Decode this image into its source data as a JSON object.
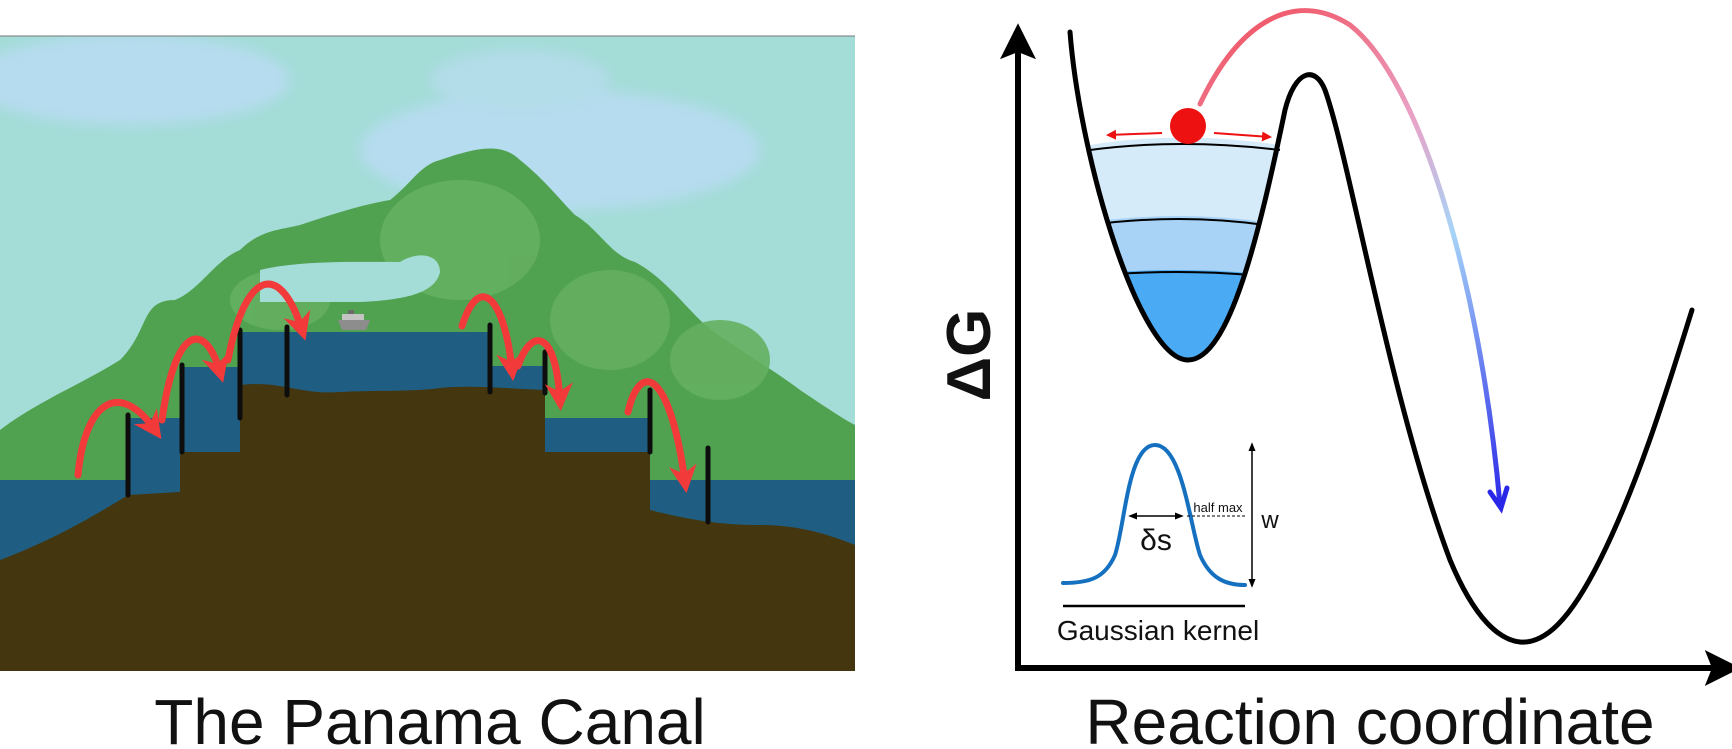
{
  "left_panel": {
    "caption": "The Panama Canal",
    "colors": {
      "sky": "#a4dcd8",
      "cloud": "#b6dcef",
      "mountain": "#51a250",
      "mountain_light": "#64b060",
      "water": "#1f5e82",
      "ground": "#44360e",
      "lock_gate": "#0d0d0d",
      "arrow": "#f23a3a"
    },
    "icons": [
      "ship-icon"
    ]
  },
  "right_panel": {
    "y_axis_label": "ΔG",
    "x_axis_label": "Reaction coordinate",
    "inset": {
      "title": "Gaussian kernel",
      "width_label": "δs",
      "half_max_label": "half max",
      "height_label": "w"
    },
    "colors": {
      "curve": "#000000",
      "ball": "#ee1111",
      "fill_levels": [
        "#d6ebfa",
        "#a8d3f6",
        "#4aabf4"
      ],
      "arrow_start": "#f24a55",
      "arrow_end": "#2a27e8",
      "kernel": "#1570c0"
    }
  }
}
